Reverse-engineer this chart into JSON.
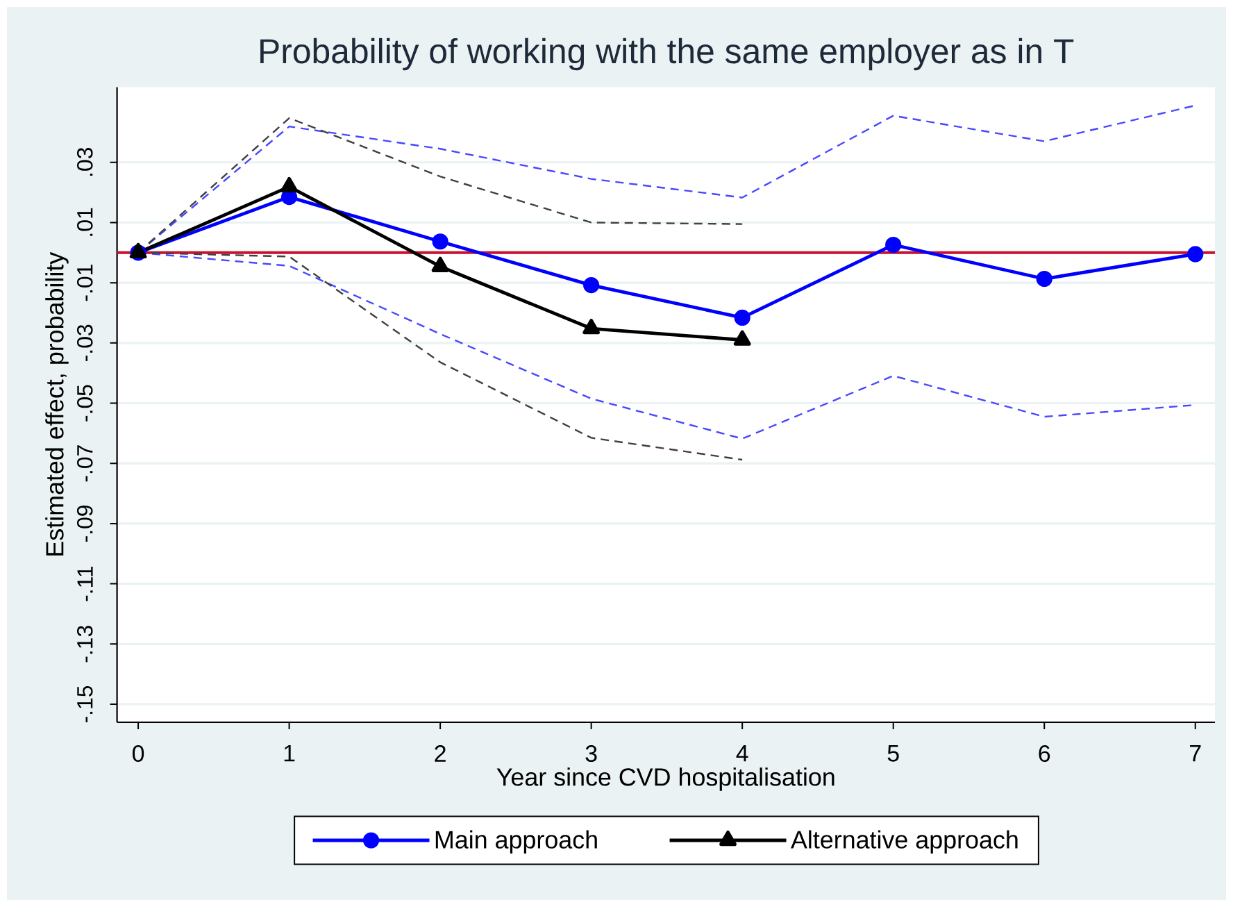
{
  "chart_data": {
    "type": "line",
    "title": "Probability of working with the same employer as in T",
    "xlabel": "Year since CVD hospitalisation",
    "ylabel": "Estimated effect, probability",
    "x": [
      0,
      1,
      2,
      3,
      4,
      5,
      6,
      7
    ],
    "xlim": [
      -0.14,
      7.13
    ],
    "xticks": [
      0,
      1,
      2,
      3,
      4,
      5,
      6,
      7
    ],
    "ylim": [
      -0.156,
      0.055
    ],
    "yticks": [
      {
        "value": 0.03,
        "label": ".03"
      },
      {
        "value": 0.01,
        "label": ".01"
      },
      {
        "value": -0.01,
        "label": "-.01"
      },
      {
        "value": -0.03,
        "label": "-.03"
      },
      {
        "value": -0.05,
        "label": "-.05"
      },
      {
        "value": -0.07,
        "label": "-.07"
      },
      {
        "value": -0.09,
        "label": "-.09"
      },
      {
        "value": -0.11,
        "label": "-.11"
      },
      {
        "value": -0.13,
        "label": "-.13"
      },
      {
        "value": -0.15,
        "label": "-.15"
      }
    ],
    "grid": "y",
    "legend": "bottom",
    "series": [
      {
        "color": "#4848ff",
        "line_style": "dashed",
        "marker": "none",
        "values": [
          0,
          0.0419,
          0.0345,
          0.0245,
          0.0183,
          0.0455,
          0.037,
          0.0489
        ]
      },
      {
        "color": "#4848ff",
        "line_style": "dashed",
        "marker": "none",
        "values": [
          0,
          -0.0044,
          -0.027,
          -0.0485,
          -0.0618,
          -0.0409,
          -0.0545,
          -0.0506
        ]
      },
      {
        "color": "#404040",
        "line_style": "dashed",
        "marker": "none",
        "values": [
          0,
          0.0447,
          0.0253,
          0.01,
          0.0095,
          null,
          null,
          null
        ]
      },
      {
        "color": "#404040",
        "line_style": "dashed",
        "marker": "none",
        "values": [
          0,
          -0.0013,
          -0.0364,
          -0.0615,
          -0.0688,
          null,
          null,
          null
        ]
      },
      {
        "name": "Main approach",
        "color": "#0000ff",
        "line_style": "solid",
        "marker": "circle",
        "values": [
          0,
          0.0185,
          0.0037,
          -0.0108,
          -0.0216,
          0.0026,
          -0.0087,
          -0.0005
        ]
      },
      {
        "name": "Alternative approach",
        "color": "#000000",
        "line_style": "solid",
        "marker": "triangle",
        "values": [
          0,
          0.0219,
          -0.0046,
          -0.0252,
          -0.029,
          null,
          null,
          null
        ]
      }
    ],
    "ref_lines": [
      {
        "axis": "y",
        "value": 0,
        "color": "#c8102e"
      }
    ]
  }
}
